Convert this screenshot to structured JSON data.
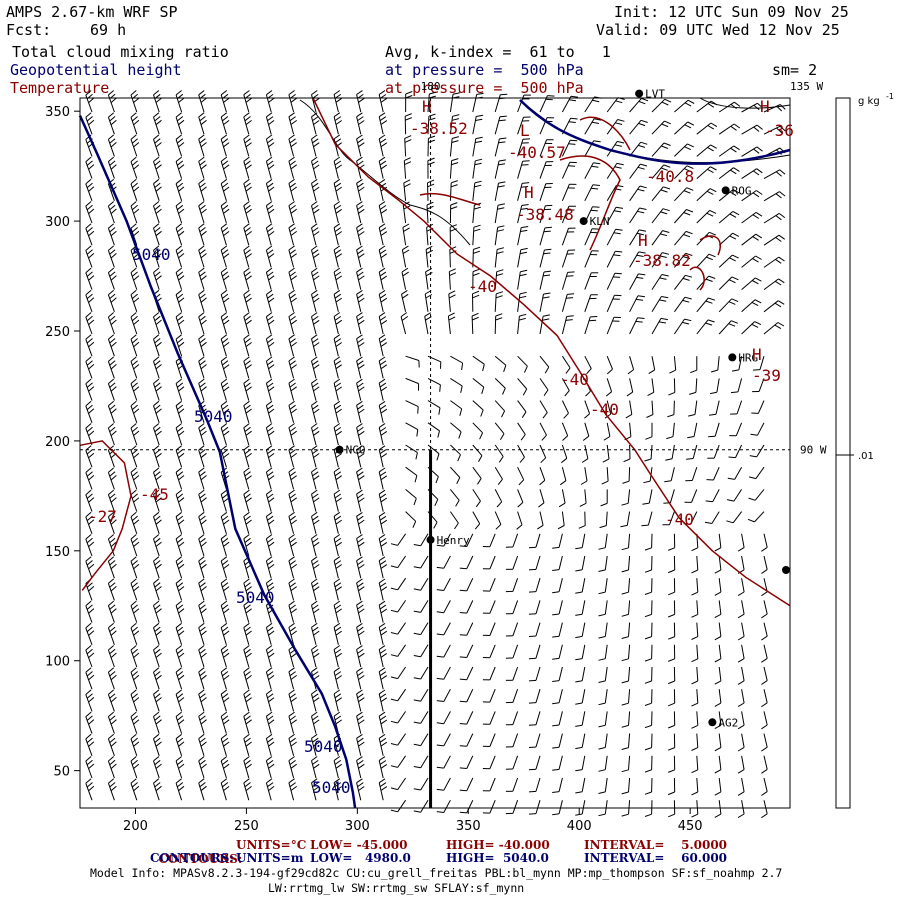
{
  "header": {
    "title": "AMPS 2.67-km WRF SP",
    "fcst_label": "Fcst:",
    "fcst_value": "69 h",
    "init": "Init: 12 UTC Sun 09 Nov 25",
    "valid": "Valid: 09 UTC Wed 12 Nov 25",
    "field1": "Total cloud mixing ratio",
    "field2": "Geopotential height",
    "field3": "Temperature",
    "avg_line": "Avg, k-index =  61 to   1",
    "pressure1": "at pressure =  500 hPa",
    "pressure2": "at pressure =  500 hPa",
    "sm": "sm= 2"
  },
  "colorbar": {
    "units": "g kg",
    "units_sup": "-1",
    "tick": ".01"
  },
  "map_labels": {
    "meridian_180": "180",
    "meridian_135w": "135 W",
    "meridian_90w": "90 W"
  },
  "stations": [
    {
      "name": "NCO",
      "x": 292,
      "y": 196
    },
    {
      "name": "Henry",
      "x": 333,
      "y": 155
    },
    {
      "name": "KLN",
      "x": 402,
      "y": 300
    },
    {
      "name": "ROG",
      "x": 466,
      "y": 314
    },
    {
      "name": "HRG",
      "x": 469,
      "y": 238
    },
    {
      "name": "AG2",
      "x": 460,
      "y": 72
    },
    {
      "name": "LVT",
      "x": 427,
      "y": 358
    }
  ],
  "temp_labels": [
    "-38.52",
    "-40.57",
    "-40.8",
    "-38.48",
    "-38.82",
    "-40",
    "-40",
    "-40",
    "-40",
    "-39",
    "-45",
    "-27",
    "-36"
  ],
  "temp_highs_lows": [
    "H",
    "L",
    "H",
    "H",
    "H",
    "H"
  ],
  "height_labels": [
    "5040",
    "5040",
    "5040",
    "5040",
    "5040"
  ],
  "chart_data": {
    "type": "contour",
    "xlabel": "",
    "ylabel": "",
    "xlim": [
      175,
      495
    ],
    "ylim": [
      33,
      356
    ],
    "xticks": [
      200,
      250,
      300,
      350,
      400,
      450
    ],
    "yticks": [
      50,
      100,
      150,
      200,
      250,
      300,
      350
    ],
    "cross_section_x": 333,
    "cross_section_y": [
      33,
      196
    ],
    "guide_x": 333,
    "guide_y": 196,
    "geopotential_height_contour": {
      "value": 5040,
      "points": [
        [
          175,
          348
        ],
        [
          183,
          330
        ],
        [
          196,
          300
        ],
        [
          207,
          270
        ],
        [
          219,
          240
        ],
        [
          232,
          210
        ],
        [
          238,
          195
        ],
        [
          245,
          160
        ],
        [
          258,
          130
        ],
        [
          272,
          105
        ],
        [
          284,
          85
        ],
        [
          290,
          70
        ],
        [
          295,
          55
        ],
        [
          298,
          40
        ],
        [
          299,
          33
        ]
      ]
    },
    "temperature_contours": [
      {
        "value": -40,
        "points": [
          [
            280,
            356
          ],
          [
            290,
            335
          ],
          [
            305,
            320
          ],
          [
            318,
            310
          ],
          [
            330,
            300
          ],
          [
            345,
            285
          ],
          [
            360,
            275
          ],
          [
            375,
            262
          ],
          [
            390,
            248
          ],
          [
            400,
            232
          ],
          [
            412,
            212
          ],
          [
            425,
            196
          ],
          [
            432,
            185
          ],
          [
            445,
            165
          ],
          [
            460,
            150
          ],
          [
            475,
            138
          ],
          [
            495,
            125
          ]
        ]
      },
      {
        "value": -45,
        "points": [
          [
            175,
            198
          ],
          [
            185,
            200
          ],
          [
            195,
            190
          ],
          [
            198,
            175
          ],
          [
            194,
            160
          ],
          [
            190,
            150
          ],
          [
            182,
            140
          ],
          [
            176,
            132
          ]
        ]
      }
    ],
    "footer_red": {
      "label": "CONTOURS:",
      "units": "UNITS=°C",
      "low": "LOW= -45.000",
      "high": "HIGH= -40.000",
      "interval": "INTERVAL=    5.0000"
    },
    "footer_blue": {
      "label": "CONTOURS:",
      "units": "UNITS=m",
      "low": "LOW=   4980.0",
      "high": "HIGH=  5040.0",
      "interval": "INTERVAL=    60.000"
    },
    "model_info": "Model Info: MPASv8.2.3-194-gf29cd82c CU:cu_grell_freitas PBL:bl_mynn MP:mp_thompson SF:sf_noahmp 2.7",
    "model_info2": "LW:rrtmg_lw SW:rrtmg_sw SFLAY:sf_mynn"
  },
  "colors": {
    "temperature": "#8b0000",
    "height": "#00006e",
    "coast": "#000000",
    "barb": "#000000"
  }
}
